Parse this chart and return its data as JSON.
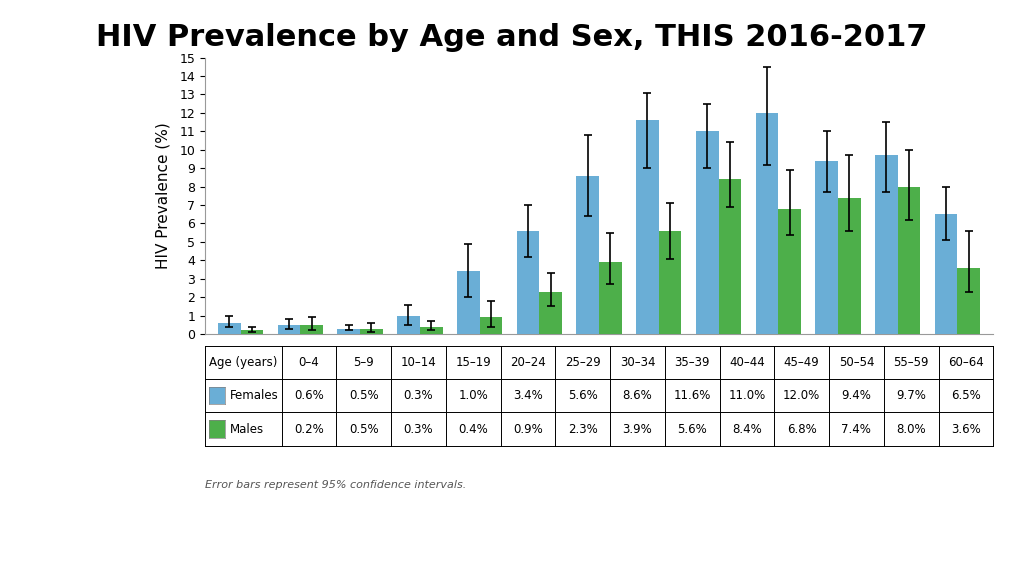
{
  "title": "HIV Prevalence by Age and Sex, THIS 2016-2017",
  "ylabel": "HIV Prevalence (%)",
  "xlabel_row": "Age (years)",
  "age_groups": [
    "0–4",
    "5–9",
    "10–14",
    "15–19",
    "20–24",
    "25–29",
    "30–34",
    "35–39",
    "40–44",
    "45–49",
    "50–54",
    "55–59",
    "60–64"
  ],
  "females": [
    0.6,
    0.5,
    0.3,
    1.0,
    3.4,
    5.6,
    8.6,
    11.6,
    11.0,
    12.0,
    9.4,
    9.7,
    6.5
  ],
  "males": [
    0.2,
    0.5,
    0.3,
    0.4,
    0.9,
    2.3,
    3.9,
    5.6,
    8.4,
    6.8,
    7.4,
    8.0,
    3.6
  ],
  "females_err_low": [
    0.2,
    0.2,
    0.1,
    0.5,
    1.4,
    1.4,
    2.2,
    2.6,
    2.0,
    2.8,
    1.7,
    2.0,
    1.4
  ],
  "females_err_high": [
    0.4,
    0.3,
    0.2,
    0.6,
    1.5,
    1.4,
    2.2,
    1.5,
    1.5,
    2.5,
    1.6,
    1.8,
    1.5
  ],
  "males_err_low": [
    0.1,
    0.3,
    0.2,
    0.2,
    0.5,
    0.8,
    1.2,
    1.5,
    1.5,
    1.4,
    1.8,
    1.8,
    1.3
  ],
  "males_err_high": [
    0.2,
    0.4,
    0.3,
    0.3,
    0.9,
    1.0,
    1.6,
    1.5,
    2.0,
    2.1,
    2.3,
    2.0,
    2.0
  ],
  "female_color": "#6aaed6",
  "male_color": "#4daf4a",
  "bar_width": 0.38,
  "ylim": [
    0,
    15
  ],
  "yticks": [
    0,
    1,
    2,
    3,
    4,
    5,
    6,
    7,
    8,
    9,
    10,
    11,
    12,
    13,
    14,
    15
  ],
  "footnote": "Error bars represent 95% confidence intervals.",
  "table_females_label": "Females",
  "table_males_label": "Males",
  "title_fontsize": 22,
  "axis_label_fontsize": 11,
  "tick_fontsize": 9,
  "table_fontsize": 8.5,
  "background_color": "#ffffff"
}
